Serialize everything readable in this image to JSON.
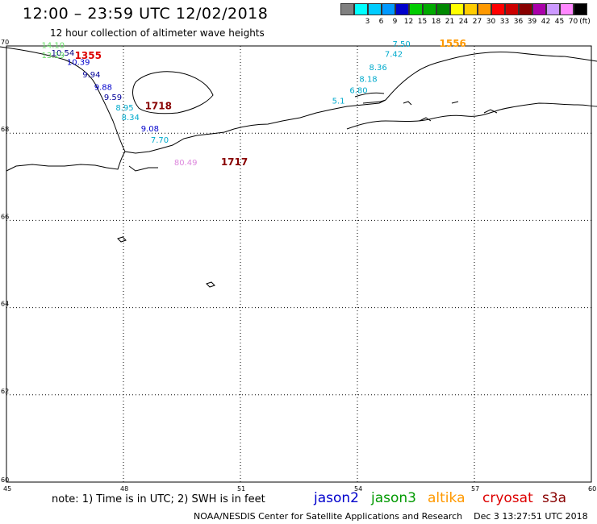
{
  "header": {
    "title": "12:00 – 23:59 UTC 12/02/2018",
    "subtitle": "12 hour collection of altimeter wave heights"
  },
  "scale": {
    "unit_label": "(ft)",
    "bins": [
      {
        "label": "",
        "color": "#808080"
      },
      {
        "label": "3",
        "color": "#00ffff"
      },
      {
        "label": "6",
        "color": "#00ccff"
      },
      {
        "label": "9",
        "color": "#0099ff"
      },
      {
        "label": "12",
        "color": "#0000cc"
      },
      {
        "label": "15",
        "color": "#00cc00"
      },
      {
        "label": "18",
        "color": "#00aa00"
      },
      {
        "label": "21",
        "color": "#008800"
      },
      {
        "label": "24",
        "color": "#ffff00"
      },
      {
        "label": "27",
        "color": "#ffcc00"
      },
      {
        "label": "30",
        "color": "#ff9900"
      },
      {
        "label": "33",
        "color": "#ff0000"
      },
      {
        "label": "36",
        "color": "#cc0000"
      },
      {
        "label": "39",
        "color": "#880000"
      },
      {
        "label": "42",
        "color": "#aa00aa"
      },
      {
        "label": "45",
        "color": "#cc99ff"
      },
      {
        "label": "70",
        "color": "#ff88ff"
      },
      {
        "label": "",
        "color": "#000000"
      }
    ]
  },
  "map": {
    "lat_labels": [
      "70",
      "68",
      "66",
      "64",
      "62",
      "60"
    ],
    "lon_labels": [
      "45",
      "48",
      "51",
      "54",
      "57",
      "60"
    ],
    "track_west": [
      {
        "text": "14.10",
        "lat": 69.95,
        "lon": 45.9,
        "color": "#66dd66"
      },
      {
        "text": "10.54",
        "lat": 69.78,
        "lon": 46.15,
        "color": "#000080"
      },
      {
        "text": "13.19",
        "lat": 69.72,
        "lon": 45.9,
        "color": "#66dd66"
      },
      {
        "text": "1355",
        "lat": 69.7,
        "lon": 46.75,
        "color": "#dd0000"
      },
      {
        "text": "10.39",
        "lat": 69.57,
        "lon": 46.55,
        "color": "#0000cc"
      },
      {
        "text": "9.94",
        "lat": 69.28,
        "lon": 46.95,
        "color": "#000099"
      },
      {
        "text": "9.88",
        "lat": 68.99,
        "lon": 47.25,
        "color": "#0000cc"
      },
      {
        "text": "9.59",
        "lat": 68.76,
        "lon": 47.5,
        "color": "#000099"
      },
      {
        "text": "1718",
        "lat": 68.55,
        "lon": 48.55,
        "color": "#880000"
      },
      {
        "text": "8.95",
        "lat": 68.52,
        "lon": 47.8,
        "color": "#00aacc"
      },
      {
        "text": "8.34",
        "lat": 68.3,
        "lon": 47.95,
        "color": "#00aacc"
      },
      {
        "text": "9.08",
        "lat": 68.04,
        "lon": 48.45,
        "color": "#0000cc"
      },
      {
        "text": "7.70",
        "lat": 67.78,
        "lon": 48.7,
        "color": "#00aacc"
      },
      {
        "text": "80.49",
        "lat": 67.26,
        "lon": 49.3,
        "color": "#dd88dd"
      },
      {
        "text": "1717",
        "lat": 67.26,
        "lon": 50.5,
        "color": "#880000"
      }
    ],
    "track_east": [
      {
        "text": "7.50",
        "lat": 69.98,
        "lon": 54.9,
        "color": "#00aacc"
      },
      {
        "text": "1556",
        "lat": 69.98,
        "lon": 56.1,
        "color": "#ff9900"
      },
      {
        "text": "7.42",
        "lat": 69.75,
        "lon": 54.7,
        "color": "#00aacc"
      },
      {
        "text": "8.36",
        "lat": 69.45,
        "lon": 54.3,
        "color": "#00aacc"
      },
      {
        "text": "8.18",
        "lat": 69.18,
        "lon": 54.05,
        "color": "#00aacc"
      },
      {
        "text": "6.80",
        "lat": 68.92,
        "lon": 53.8,
        "color": "#00aacc"
      },
      {
        "text": "5.1",
        "lat": 68.68,
        "lon": 53.35,
        "color": "#00aacc"
      }
    ]
  },
  "footer": {
    "note": "note:  1) Time is in UTC;  2) SWH is in feet",
    "satellites": [
      {
        "name": "jason2",
        "color": "#0000cc"
      },
      {
        "name": "jason3",
        "color": "#009900"
      },
      {
        "name": "altika",
        "color": "#ff9900"
      },
      {
        "name": "cryosat",
        "color": "#dd0000"
      },
      {
        "name": "s3a",
        "color": "#880000"
      }
    ],
    "credit": "NOAA/NESDIS Center for Satellite Applications and Research",
    "timestamp": "Dec  3 13:27:51 UTC 2018"
  }
}
